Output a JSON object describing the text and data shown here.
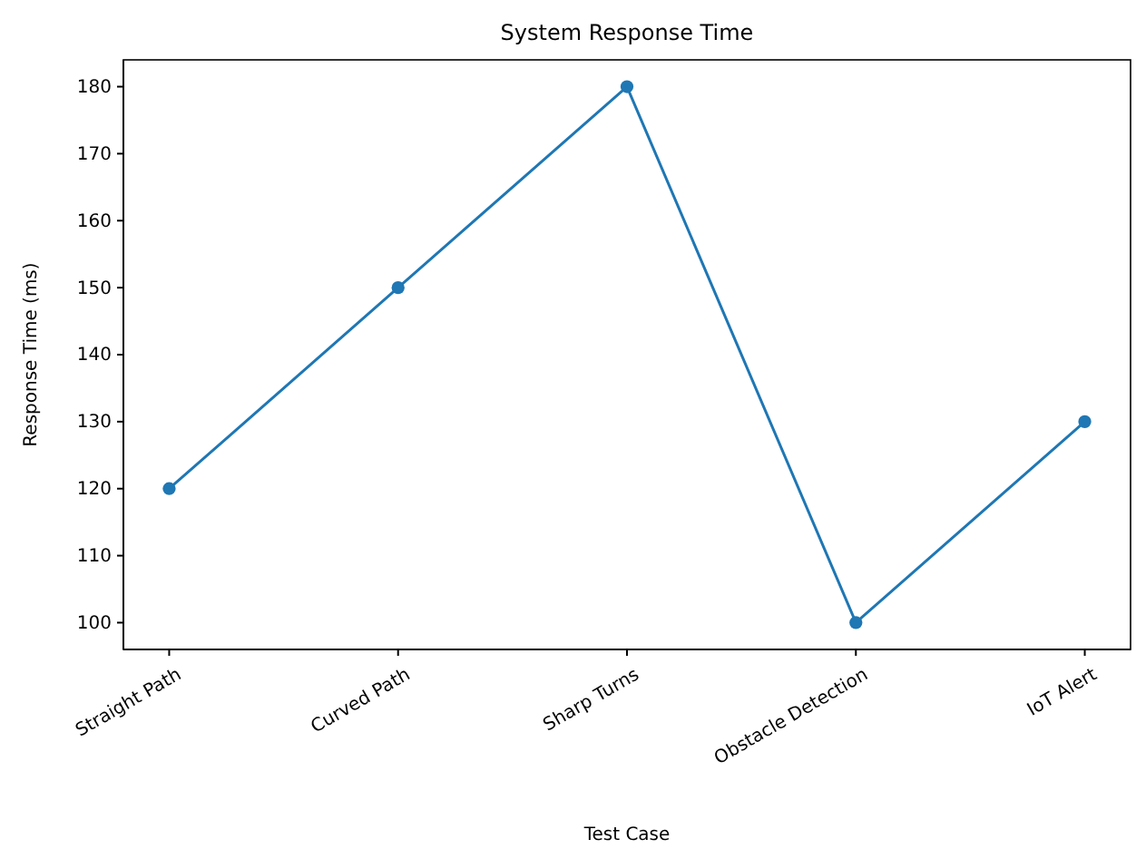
{
  "chart_data": {
    "type": "line",
    "title": "System Response Time",
    "xlabel": "Test Case",
    "ylabel": "Response Time (ms)",
    "categories": [
      "Straight Path",
      "Curved Path",
      "Sharp Turns",
      "Obstacle Detection",
      "IoT Alert"
    ],
    "series": [
      {
        "color": "#1f77b4",
        "values": [
          120,
          150,
          180,
          100,
          130
        ]
      }
    ],
    "ylim": [
      96,
      184
    ],
    "yticks": [
      100,
      110,
      120,
      130,
      140,
      150,
      160,
      170,
      180
    ],
    "marker": "circle",
    "line_style": "solid"
  }
}
